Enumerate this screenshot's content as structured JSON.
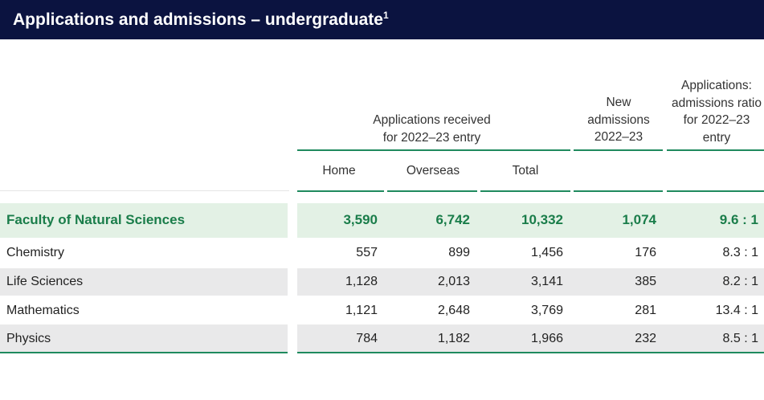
{
  "title": {
    "text": "Applications and admissions – undergraduate",
    "footnote": "1"
  },
  "headers": {
    "applications_group": "Applications received for 2022–23 entry",
    "home": "Home",
    "overseas": "Overseas",
    "total": "Total",
    "new_admissions": "New admissions 2022–23",
    "ratio": "Applications: admissions ratio for 2022–23 entry"
  },
  "rows": [
    {
      "label": "Faculty of Natural Sciences",
      "home": "3,590",
      "overseas": "6,742",
      "total": "10,332",
      "admissions": "1,074",
      "ratio": "9.6 : 1"
    },
    {
      "label": "Chemistry",
      "home": "557",
      "overseas": "899",
      "total": "1,456",
      "admissions": "176",
      "ratio": "8.3 : 1"
    },
    {
      "label": "Life Sciences",
      "home": "1,128",
      "overseas": "2,013",
      "total": "3,141",
      "admissions": "385",
      "ratio": "8.2 : 1"
    },
    {
      "label": "Mathematics",
      "home": "1,121",
      "overseas": "2,648",
      "total": "3,769",
      "admissions": "281",
      "ratio": "13.4 : 1"
    },
    {
      "label": "Physics",
      "home": "784",
      "overseas": "1,182",
      "total": "1,966",
      "admissions": "232",
      "ratio": "8.5 : 1"
    }
  ],
  "colors": {
    "title_bar": "#0b1340",
    "accent_green": "#1f8a5e",
    "faculty_text": "#1a7d4a",
    "faculty_row_bg": "#e3f1e5",
    "alt_row_bg": "#e9e9ea"
  }
}
